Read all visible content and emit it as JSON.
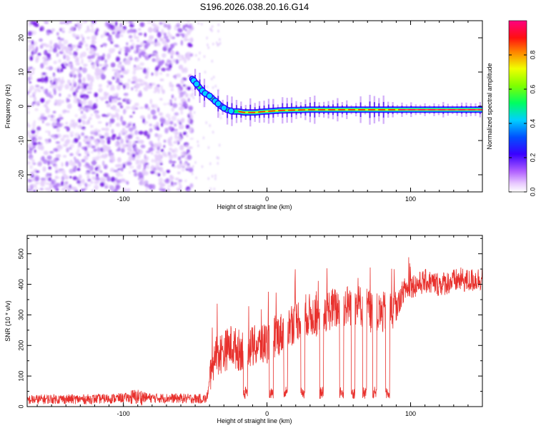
{
  "figure": {
    "title": "S196.2026.038.20.16.G14"
  },
  "chart_data": [
    {
      "type": "heatmap",
      "title": "S196.2026.038.20.16.G14",
      "xlabel": "Height of straight line (km)",
      "ylabel": "Frequency (Hz)",
      "xlim": [
        -167,
        150
      ],
      "ylim": [
        -25,
        25
      ],
      "xticks": [
        -100,
        0,
        100
      ],
      "yticks": [
        -20,
        -10,
        0,
        10,
        20
      ],
      "colorbar": {
        "label": "Normalized spectral amplitude",
        "range": [
          0,
          1
        ],
        "ticks": [
          "0.0",
          "0.2",
          "0.4",
          "0.6",
          "0.8"
        ],
        "tick_values": [
          0.0,
          0.2,
          0.4,
          0.6,
          0.8
        ]
      },
      "noise_region_x": [
        -167,
        -52
      ],
      "ridge": {
        "x": [
          -52,
          -48,
          -44,
          -40,
          -36,
          -32,
          -28,
          -24,
          -20,
          -16,
          -12,
          -8,
          -4,
          0,
          10,
          30,
          60,
          90,
          120,
          150
        ],
        "freq": [
          8,
          6,
          4,
          3,
          1.5,
          0,
          -1,
          -1.5,
          -1.5,
          -1.8,
          -1.8,
          -1.8,
          -1.6,
          -1.5,
          -1.2,
          -1.0,
          -1.0,
          -1.0,
          -1.0,
          -1.0
        ]
      },
      "colors": [
        "#ffffff",
        "#d9a6ff",
        "#8a2be2",
        "#3300ff",
        "#00c8ff",
        "#00ff66",
        "#e6ff00",
        "#ff2200",
        "#ff0088"
      ]
    },
    {
      "type": "line",
      "xlabel": "Height of straight line (km)",
      "ylabel": "SNR (10 * v/v)",
      "xlim": [
        -167,
        150
      ],
      "ylim": [
        0,
        560
      ],
      "xticks": [
        -100,
        0,
        100
      ],
      "yticks": [
        0,
        100,
        200,
        300,
        400,
        500
      ],
      "line_color": "#e8302c",
      "series": [
        {
          "x": [
            -167,
            -150,
            -130,
            -110,
            -95,
            -90,
            -80,
            -60,
            -50,
            -42,
            -40,
            -38,
            -35,
            -30,
            -25,
            -20,
            -15,
            -10,
            -5,
            0,
            5,
            10,
            15,
            20,
            25,
            30,
            35,
            40,
            45,
            50,
            55,
            60,
            65,
            70,
            75,
            80,
            85,
            90,
            95,
            100,
            105,
            110,
            115,
            120,
            125,
            130,
            135,
            140,
            145,
            150
          ],
          "values": [
            22,
            25,
            24,
            26,
            30,
            32,
            28,
            27,
            26,
            25,
            80,
            150,
            170,
            180,
            200,
            185,
            190,
            195,
            200,
            210,
            230,
            240,
            260,
            280,
            300,
            300,
            295,
            310,
            320,
            320,
            330,
            335,
            330,
            320,
            300,
            305,
            310,
            320,
            380,
            395,
            400,
            410,
            405,
            400,
            405,
            410,
            415,
            410,
            415,
            420
          ]
        }
      ],
      "dips_x": [
        -15,
        3,
        13,
        25,
        38,
        52,
        60,
        68,
        75,
        84
      ]
    }
  ]
}
